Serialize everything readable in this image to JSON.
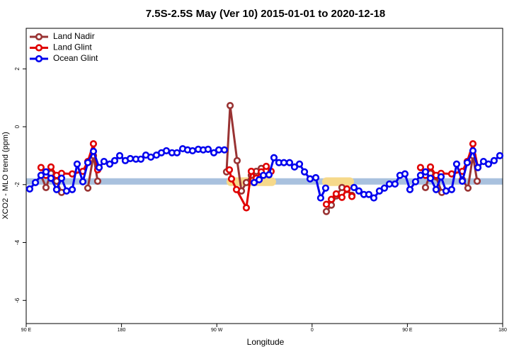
{
  "chart_data": {
    "type": "line",
    "title": "7.5S-2.5S May (Ver 10)   2015-01-01 to 2020-12-18",
    "x_label": "Longitude",
    "y_label": "XCO2 - MLO trend (ppm)",
    "xlim": [
      90,
      540
    ],
    "ylim": [
      -6.8,
      3.4
    ],
    "xticks": [
      {
        "value": 90,
        "label": "90 E"
      },
      {
        "value": 180,
        "label": "180"
      },
      {
        "value": 270,
        "label": "90 W"
      },
      {
        "value": 360,
        "label": "0"
      },
      {
        "value": 450,
        "label": "90 E"
      },
      {
        "value": 540,
        "label": "180"
      }
    ],
    "yticks": [
      2,
      0,
      -2,
      -4,
      -6
    ],
    "legend": "top-left",
    "reference_band": {
      "ylim": [
        -2.0,
        -1.78
      ],
      "color": "#a9c1de"
    },
    "highlight_regions": [
      {
        "xlim": [
          279.2,
          326
        ],
        "ylim": [
          -2.05,
          -1.75
        ],
        "color": "#f6d98a"
      },
      {
        "xlim": [
          369.5,
          399.6
        ],
        "ylim": [
          -2.05,
          -1.75
        ],
        "color": "#f6d98a"
      }
    ],
    "series": [
      {
        "name": "Land Nadir",
        "color": "#993333",
        "x": [
          104.0,
          108.7,
          113.4,
          118.7,
          123.4,
          128,
          148.2,
          153.5,
          157.5,
          240,
          279.2,
          282.6,
          289.2,
          293.3,
          297.9,
          302.6,
          307.3,
          312.0,
          340,
          373.5,
          378.2,
          382.8,
          388.2,
          392.9,
          397.6,
          430,
          467.1,
          471.8,
          477.1,
          482.5,
          490,
          501.9,
          507.2,
          511.9,
          515.9
        ],
        "values": [
          -1.68,
          -2.1,
          -1.61,
          -1.88,
          -2.27,
          null,
          -2.12,
          -1.0,
          -1.88,
          null,
          -1.56,
          0.73,
          -1.17,
          -2.22,
          -1.93,
          -1.68,
          -1.54,
          -1.44,
          null,
          -2.93,
          -2.71,
          -2.39,
          -2.1,
          -2.17,
          -2.37,
          null,
          -2.1,
          -1.61,
          -1.73,
          -2.27,
          null,
          -1.83,
          -2.12,
          -1.0,
          -1.88
        ]
      },
      {
        "name": "Land Glint",
        "color": "#e00000",
        "x": [
          104.0,
          108.7,
          113.4,
          118.7,
          123.4,
          133.5,
          143.5,
          148.2,
          153.5,
          157.5,
          240,
          281.9,
          283.9,
          288.6,
          297.9,
          302.6,
          307.3,
          312.0,
          316.7,
          321.3,
          340,
          373.5,
          378.2,
          382.8,
          388.2,
          392.9,
          397.6,
          430,
          462.4,
          467.1,
          471.8,
          477.1,
          481.8,
          491.8,
          501.9,
          506.5,
          511.9,
          516.6
        ],
        "values": [
          -1.41,
          -1.68,
          -1.39,
          -1.68,
          -1.61,
          -1.63,
          -1.54,
          -1.2,
          -0.59,
          -1.49,
          null,
          -1.49,
          -1.8,
          -2.17,
          -2.8,
          -1.54,
          -1.78,
          -1.56,
          -1.37,
          -1.54,
          null,
          -2.68,
          -2.51,
          -2.32,
          -2.44,
          -2.15,
          -2.41,
          null,
          -1.41,
          -1.68,
          -1.39,
          -1.68,
          -1.61,
          -1.63,
          -1.54,
          -1.2,
          -0.59,
          -1.41
        ]
      },
      {
        "name": "Ocean Glint",
        "color": "#0000ee",
        "x": [
          93.3,
          98.7,
          104.0,
          108.7,
          113.4,
          118.7,
          123.4,
          128.1,
          133.5,
          138.1,
          143.5,
          148.2,
          153.5,
          158.9,
          163.5,
          168.9,
          173.6,
          178.3,
          183.6,
          188.3,
          193.6,
          198.3,
          203.0,
          207.7,
          213.0,
          217.7,
          222.4,
          227.7,
          232.4,
          237.8,
          242.4,
          247.1,
          252.5,
          257.2,
          261.8,
          267.2,
          271.9,
          277.2,
          285,
          305.3,
          310.0,
          314.0,
          319.3,
          324.0,
          328.7,
          333.4,
          338.7,
          343.4,
          348.1,
          352.8,
          358.1,
          363.5,
          368.1,
          372.8,
          380,
          399.6,
          404.2,
          408.9,
          413.6,
          418.3,
          423.6,
          428.3,
          433.0,
          438.3,
          443.0,
          447.7,
          452.4,
          457.7,
          462.4,
          467.1,
          471.8,
          477.1,
          481.8,
          486.5,
          491.8,
          496.5,
          501.9,
          506.5,
          511.9,
          516.6,
          521.9,
          526.6,
          531.9,
          537.3
        ],
        "values": [
          -2.15,
          -1.93,
          -1.68,
          -1.56,
          -1.78,
          -2.17,
          -1.78,
          -2.22,
          -2.17,
          -1.29,
          -1.9,
          -1.24,
          -0.85,
          -1.41,
          -1.2,
          -1.29,
          -1.17,
          -1.0,
          -1.17,
          -1.1,
          -1.12,
          -1.12,
          -0.98,
          -1.05,
          -0.98,
          -0.9,
          -0.83,
          -0.9,
          -0.9,
          -0.76,
          -0.8,
          -0.83,
          -0.78,
          -0.8,
          -0.78,
          -0.9,
          -0.8,
          -0.8,
          null,
          -1.93,
          -1.83,
          -1.68,
          -1.66,
          -1.07,
          -1.24,
          -1.24,
          -1.24,
          -1.39,
          -1.29,
          -1.56,
          -1.8,
          -1.76,
          -2.46,
          -2.12,
          null,
          -2.1,
          -2.22,
          -2.34,
          -2.34,
          -2.46,
          -2.22,
          -2.12,
          -1.98,
          -1.98,
          -1.68,
          -1.63,
          -2.17,
          -1.9,
          -1.68,
          -1.56,
          -1.78,
          -2.17,
          -1.73,
          -2.22,
          -2.17,
          -1.29,
          -1.88,
          -1.24,
          -0.83,
          -1.41,
          -1.2,
          -1.29,
          -1.17,
          -1.0
        ]
      }
    ]
  }
}
